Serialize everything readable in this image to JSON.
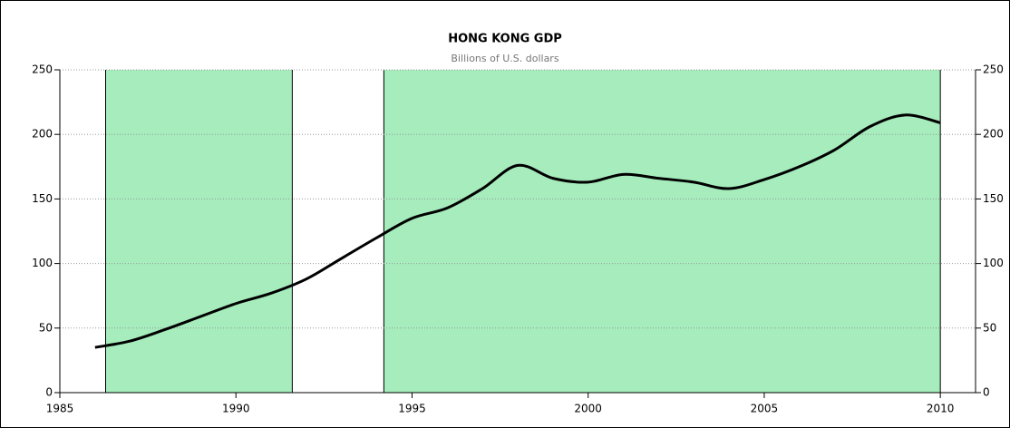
{
  "chart_data": {
    "type": "line",
    "title": "HONG KONG GDP",
    "subtitle": "Billions of U.S. dollars",
    "x": [
      1986,
      1987,
      1988,
      1989,
      1990,
      1991,
      1992,
      1993,
      1994,
      1995,
      1996,
      1997,
      1998,
      1999,
      2000,
      2001,
      2002,
      2003,
      2004,
      2005,
      2006,
      2007,
      2008,
      2009,
      2010
    ],
    "series": [
      {
        "name": "GDP",
        "color": "#000000",
        "values": [
          35,
          40,
          49,
          59,
          69,
          77,
          88,
          104,
          120,
          135,
          143,
          158,
          176,
          166,
          163,
          169,
          166,
          163,
          158,
          165,
          175,
          188,
          206,
          215,
          209
        ]
      }
    ],
    "shaded_ranges": [
      [
        1986.3,
        1991.6
      ],
      [
        1994.2,
        2010
      ]
    ],
    "shade_color": "#a6ecbc",
    "xlim": [
      1985,
      2011
    ],
    "xticks": [
      1985,
      1990,
      1995,
      2000,
      2005,
      2010
    ],
    "ylim": [
      0,
      250
    ],
    "yticks": [
      0,
      50,
      100,
      150,
      200,
      250
    ],
    "grid": true
  }
}
